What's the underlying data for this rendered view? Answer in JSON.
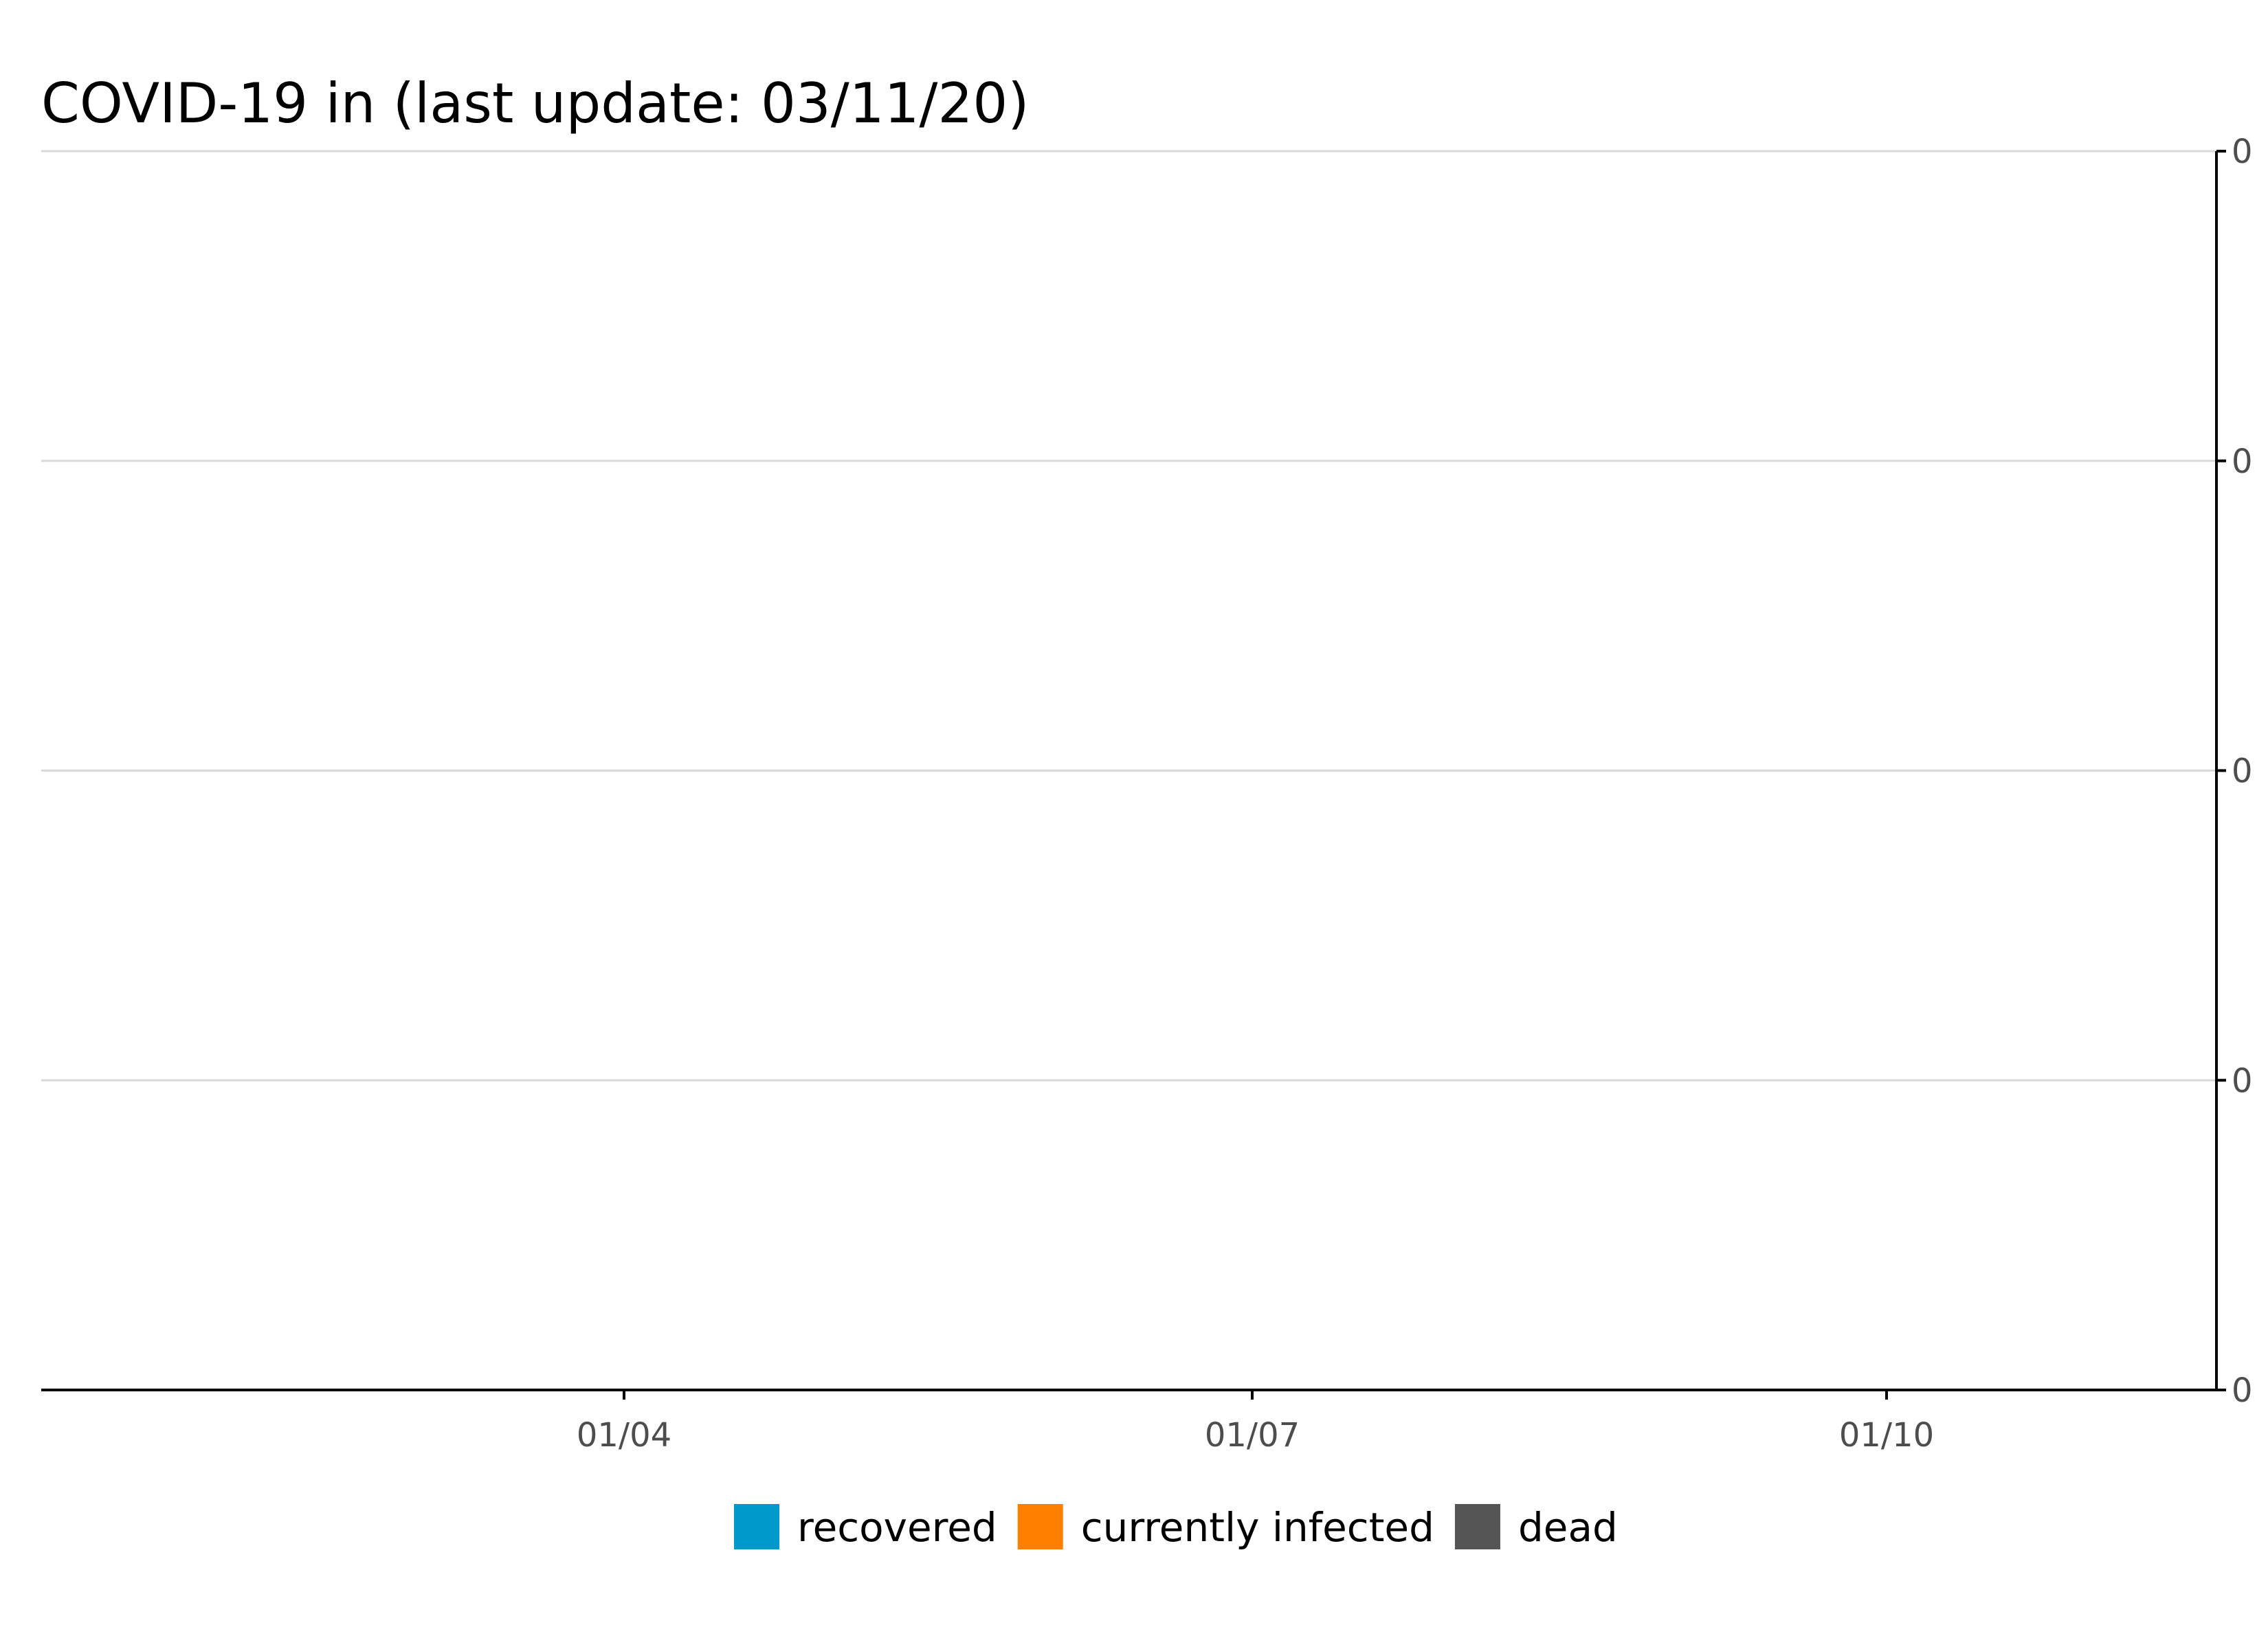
{
  "chart_data": {
    "type": "area",
    "title": "COVID-19 in  (last update: 03/11/20)",
    "xlabel": "",
    "ylabel": "",
    "x_ticks": [
      "01/04",
      "01/07",
      "01/10"
    ],
    "y_ticks": [
      "0",
      "0",
      "0",
      "0",
      "0"
    ],
    "y_axis_position": "right",
    "grid": "horizontal",
    "legend_position": "bottom",
    "stacked": true,
    "series": [
      {
        "name": "recovered",
        "color": "#0099cc",
        "values": []
      },
      {
        "name": "currently infected",
        "color": "#ff7f00",
        "values": []
      },
      {
        "name": "dead",
        "color": "#555555",
        "values": []
      }
    ]
  }
}
